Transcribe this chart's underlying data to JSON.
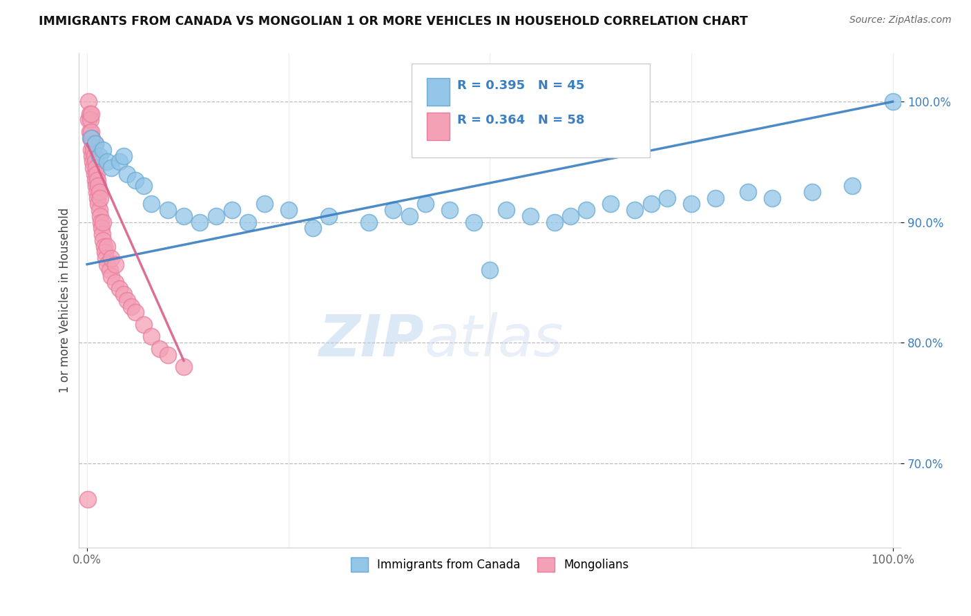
{
  "title": "IMMIGRANTS FROM CANADA VS MONGOLIAN 1 OR MORE VEHICLES IN HOUSEHOLD CORRELATION CHART",
  "source": "Source: ZipAtlas.com",
  "xlabel": "",
  "ylabel": "1 or more Vehicles in Household",
  "xlim": [
    -1,
    101
  ],
  "ylim": [
    63,
    104
  ],
  "yticks": [
    70,
    80,
    90,
    100
  ],
  "ytick_labels": [
    "70.0%",
    "80.0%",
    "90.0%",
    "100.0%"
  ],
  "blue_R": 0.395,
  "blue_N": 45,
  "pink_R": 0.364,
  "pink_N": 58,
  "blue_color": "#92C5E8",
  "pink_color": "#F4A0B5",
  "blue_edge_color": "#6AAAD4",
  "pink_edge_color": "#E87CA0",
  "blue_line_color": "#3A7FC1",
  "pink_line_color": "#D95F8A",
  "watermark_zip": "ZIP",
  "watermark_atlas": "atlas",
  "legend_label_blue": "Immigrants from Canada",
  "legend_label_pink": "Mongolians",
  "blue_scatter_x": [
    0.5,
    1.0,
    1.5,
    2.0,
    2.5,
    3.0,
    4.0,
    4.5,
    5.0,
    6.0,
    7.0,
    8.0,
    10.0,
    12.0,
    14.0,
    16.0,
    18.0,
    20.0,
    22.0,
    25.0,
    28.0,
    30.0,
    35.0,
    38.0,
    40.0,
    42.0,
    45.0,
    48.0,
    50.0,
    52.0,
    55.0,
    58.0,
    60.0,
    62.0,
    65.0,
    68.0,
    70.0,
    72.0,
    75.0,
    78.0,
    82.0,
    85.0,
    90.0,
    95.0,
    100.0
  ],
  "blue_scatter_y": [
    97.0,
    96.5,
    95.5,
    96.0,
    95.0,
    94.5,
    95.0,
    95.5,
    94.0,
    93.5,
    93.0,
    91.5,
    91.0,
    90.5,
    90.0,
    90.5,
    91.0,
    90.0,
    91.5,
    91.0,
    89.5,
    90.5,
    90.0,
    91.0,
    90.5,
    91.5,
    91.0,
    90.0,
    86.0,
    91.0,
    90.5,
    90.0,
    90.5,
    91.0,
    91.5,
    91.0,
    91.5,
    92.0,
    91.5,
    92.0,
    92.5,
    92.0,
    92.5,
    93.0,
    100.0
  ],
  "pink_scatter_x": [
    0.2,
    0.2,
    0.3,
    0.3,
    0.4,
    0.4,
    0.5,
    0.5,
    0.5,
    0.6,
    0.6,
    0.7,
    0.7,
    0.8,
    0.8,
    0.9,
    0.9,
    1.0,
    1.0,
    1.0,
    1.1,
    1.1,
    1.2,
    1.2,
    1.3,
    1.3,
    1.4,
    1.4,
    1.5,
    1.5,
    1.6,
    1.6,
    1.7,
    1.8,
    1.9,
    2.0,
    2.0,
    2.1,
    2.2,
    2.3,
    2.5,
    2.5,
    2.8,
    3.0,
    3.0,
    3.5,
    3.5,
    4.0,
    4.5,
    5.0,
    5.5,
    6.0,
    7.0,
    8.0,
    9.0,
    10.0,
    12.0,
    0.1
  ],
  "pink_scatter_y": [
    98.5,
    100.0,
    97.5,
    99.0,
    97.0,
    98.5,
    96.0,
    97.5,
    99.0,
    95.5,
    97.0,
    95.0,
    96.5,
    94.5,
    96.0,
    94.0,
    95.5,
    93.5,
    95.0,
    96.5,
    93.0,
    94.5,
    92.5,
    94.0,
    92.0,
    93.5,
    91.5,
    93.0,
    91.0,
    92.5,
    90.5,
    92.0,
    90.0,
    89.5,
    89.0,
    88.5,
    90.0,
    88.0,
    87.5,
    87.0,
    86.5,
    88.0,
    86.0,
    85.5,
    87.0,
    85.0,
    86.5,
    84.5,
    84.0,
    83.5,
    83.0,
    82.5,
    81.5,
    80.5,
    79.5,
    79.0,
    78.0,
    67.0
  ],
  "blue_line_x": [
    0,
    100
  ],
  "blue_line_y": [
    86.5,
    100.0
  ],
  "pink_line_x": [
    0,
    12
  ],
  "pink_line_y": [
    96.5,
    78.5
  ]
}
